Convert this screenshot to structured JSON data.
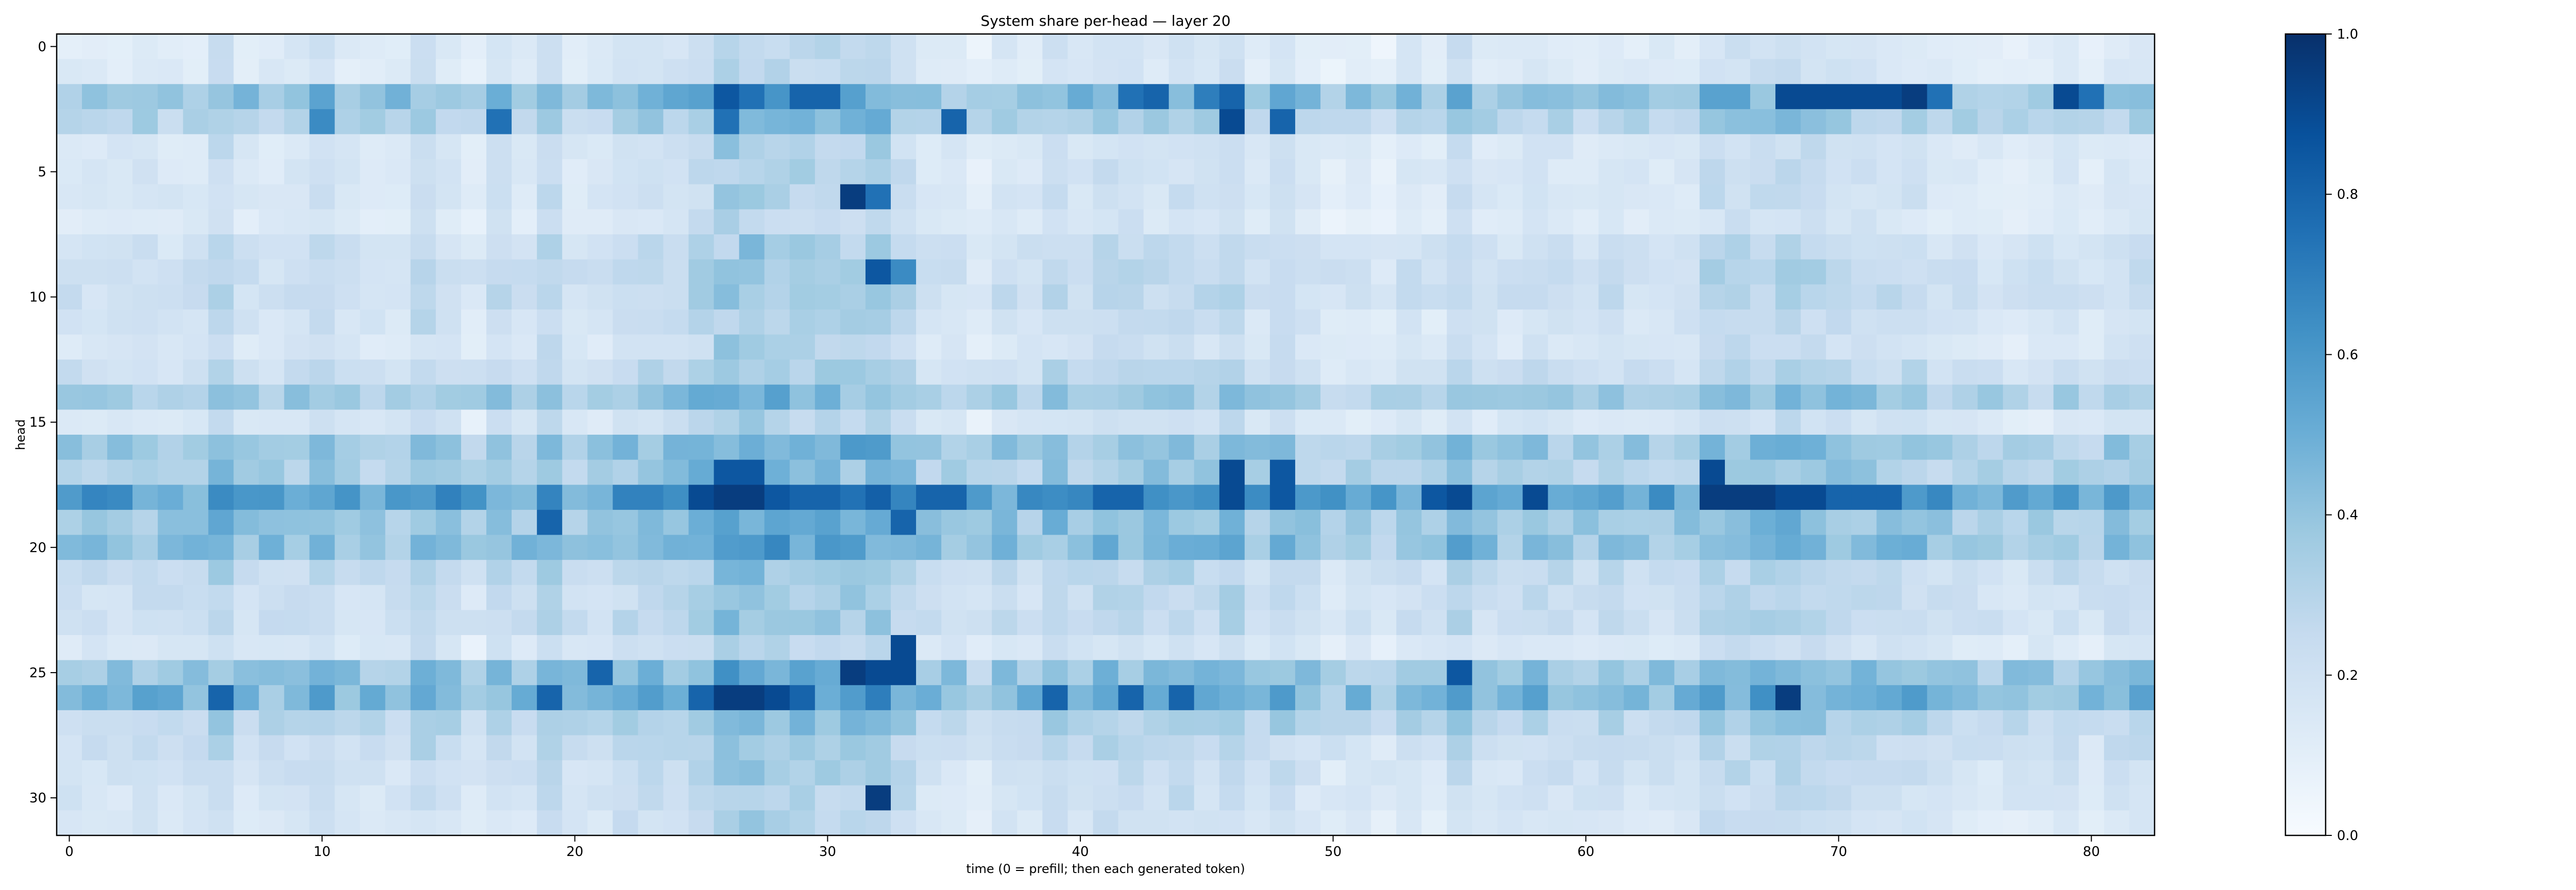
{
  "chart_data": {
    "type": "heatmap",
    "title": "System share per-head — layer 20",
    "xlabel": "time (0 = prefill; then each generated token)",
    "ylabel": "head",
    "x_ticks": [
      0,
      10,
      20,
      30,
      40,
      50,
      60,
      70,
      80
    ],
    "y_ticks": [
      0,
      5,
      10,
      15,
      20,
      25,
      30
    ],
    "colormap": "Blues",
    "colormap_stops": [
      "#f7fbff",
      "#deebf7",
      "#c6dbef",
      "#9ecae1",
      "#6baed6",
      "#4292c6",
      "#2171b5",
      "#08519c",
      "#08306b"
    ],
    "colorbar_range": [
      0.0,
      1.0
    ],
    "colorbar_ticks": [
      0.0,
      0.2,
      0.4,
      0.6,
      0.8,
      1.0
    ],
    "colorbar_tick_labels": [
      "0.0",
      "0.2",
      "0.4",
      "0.6",
      "0.8",
      "1.0"
    ],
    "n_cols": 83,
    "n_rows": 32,
    "grid": false,
    "legend": "none",
    "row_base": [
      0.12,
      0.12,
      0.38,
      0.28,
      0.14,
      0.14,
      0.14,
      0.12,
      0.18,
      0.2,
      0.2,
      0.16,
      0.14,
      0.2,
      0.32,
      0.14,
      0.34,
      0.3,
      0.52,
      0.34,
      0.38,
      0.22,
      0.2,
      0.2,
      0.14,
      0.36,
      0.42,
      0.26,
      0.2,
      0.18,
      0.16,
      0.14
    ],
    "col_bias": [
      0.0,
      0.0,
      0.0,
      0.02,
      0.0,
      0.0,
      0.08,
      0.0,
      0.0,
      0.02,
      0.06,
      0.0,
      0.0,
      0.0,
      0.08,
      0.02,
      -0.04,
      0.04,
      0.0,
      0.08,
      0.0,
      0.0,
      0.06,
      0.06,
      0.06,
      0.12,
      0.18,
      0.18,
      0.14,
      0.14,
      0.14,
      0.12,
      0.16,
      0.08,
      0.0,
      0.0,
      -0.04,
      0.02,
      0.0,
      0.06,
      0.02,
      0.06,
      0.06,
      0.04,
      0.06,
      0.04,
      0.08,
      0.0,
      0.06,
      0.0,
      -0.04,
      -0.02,
      -0.04,
      0.02,
      -0.02,
      0.08,
      0.0,
      0.0,
      0.02,
      0.02,
      0.0,
      0.02,
      0.0,
      0.0,
      0.0,
      0.08,
      0.08,
      0.08,
      0.1,
      0.08,
      0.06,
      0.04,
      0.04,
      0.04,
      0.0,
      0.0,
      -0.02,
      -0.02,
      -0.02,
      0.0,
      -0.02,
      0.02,
      0.02
    ],
    "hot_cells": [
      [
        2,
        14,
        0.35
      ],
      [
        2,
        19,
        0.45
      ],
      [
        2,
        26,
        0.85
      ],
      [
        2,
        27,
        0.75
      ],
      [
        2,
        29,
        0.8
      ],
      [
        2,
        30,
        0.8
      ],
      [
        2,
        42,
        0.75
      ],
      [
        2,
        43,
        0.8
      ],
      [
        2,
        45,
        0.7
      ],
      [
        2,
        46,
        0.8
      ],
      [
        2,
        68,
        0.9
      ],
      [
        2,
        69,
        0.9
      ],
      [
        2,
        70,
        0.9
      ],
      [
        2,
        71,
        0.9
      ],
      [
        2,
        72,
        0.9
      ],
      [
        2,
        73,
        0.95
      ],
      [
        2,
        74,
        0.75
      ],
      [
        2,
        79,
        0.9
      ],
      [
        2,
        80,
        0.75
      ],
      [
        3,
        10,
        0.65
      ],
      [
        3,
        17,
        0.75
      ],
      [
        3,
        26,
        0.75
      ],
      [
        3,
        35,
        0.8
      ],
      [
        3,
        46,
        0.9
      ],
      [
        3,
        48,
        0.8
      ],
      [
        6,
        31,
        0.95
      ],
      [
        6,
        32,
        0.75
      ],
      [
        9,
        32,
        0.85
      ],
      [
        9,
        33,
        0.65
      ],
      [
        17,
        26,
        0.85
      ],
      [
        17,
        27,
        0.85
      ],
      [
        17,
        46,
        0.9
      ],
      [
        17,
        48,
        0.85
      ],
      [
        17,
        65,
        0.9
      ],
      [
        18,
        25,
        0.9
      ],
      [
        18,
        26,
        0.95
      ],
      [
        18,
        27,
        0.95
      ],
      [
        18,
        28,
        0.85
      ],
      [
        18,
        29,
        0.8
      ],
      [
        18,
        30,
        0.8
      ],
      [
        18,
        34,
        0.8
      ],
      [
        18,
        35,
        0.8
      ],
      [
        18,
        41,
        0.8
      ],
      [
        18,
        42,
        0.8
      ],
      [
        18,
        46,
        0.9
      ],
      [
        18,
        48,
        0.85
      ],
      [
        18,
        54,
        0.85
      ],
      [
        18,
        55,
        0.9
      ],
      [
        18,
        58,
        0.9
      ],
      [
        18,
        65,
        0.95
      ],
      [
        18,
        66,
        0.95
      ],
      [
        18,
        67,
        0.95
      ],
      [
        18,
        68,
        0.9
      ],
      [
        18,
        69,
        0.9
      ],
      [
        18,
        70,
        0.8
      ],
      [
        18,
        71,
        0.8
      ],
      [
        18,
        72,
        0.8
      ],
      [
        19,
        19,
        0.8
      ],
      [
        19,
        33,
        0.8
      ],
      [
        24,
        33,
        0.9
      ],
      [
        25,
        21,
        0.8
      ],
      [
        25,
        31,
        0.95
      ],
      [
        25,
        32,
        0.9
      ],
      [
        25,
        33,
        0.9
      ],
      [
        25,
        55,
        0.85
      ],
      [
        26,
        6,
        0.8
      ],
      [
        26,
        19,
        0.8
      ],
      [
        26,
        25,
        0.8
      ],
      [
        26,
        26,
        0.95
      ],
      [
        26,
        27,
        0.95
      ],
      [
        26,
        28,
        0.9
      ],
      [
        26,
        29,
        0.8
      ],
      [
        26,
        39,
        0.8
      ],
      [
        26,
        42,
        0.8
      ],
      [
        26,
        44,
        0.8
      ],
      [
        26,
        68,
        0.95
      ],
      [
        30,
        32,
        0.95
      ]
    ]
  }
}
